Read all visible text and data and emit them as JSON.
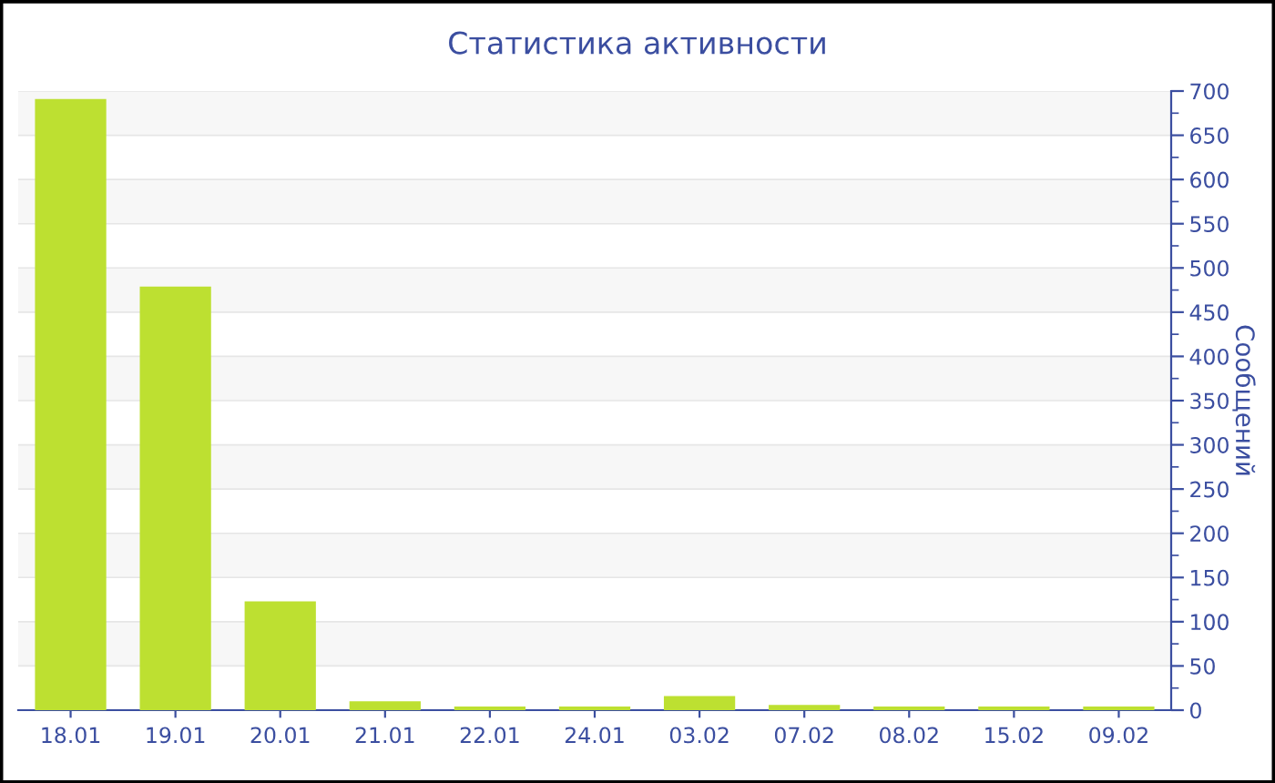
{
  "chart_data": {
    "type": "bar",
    "title": "Статистика активности",
    "ylabel": "Сообщений",
    "categories": [
      "18.01",
      "19.01",
      "20.01",
      "21.01",
      "22.01",
      "24.01",
      "03.02",
      "07.02",
      "08.02",
      "15.02",
      "09.02"
    ],
    "values": [
      691,
      479,
      123,
      10,
      4,
      4,
      16,
      6,
      4,
      4,
      4
    ],
    "color": "#bde031",
    "ylim": [
      0,
      700
    ],
    "yticks": [
      0,
      50,
      100,
      150,
      200,
      250,
      300,
      350,
      400,
      450,
      500,
      550,
      600,
      650,
      700
    ],
    "grid": "y",
    "legend": false
  }
}
